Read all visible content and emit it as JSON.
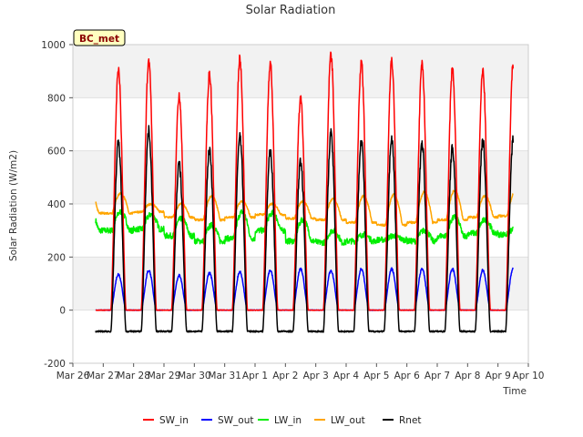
{
  "chart_data": {
    "type": "line",
    "title": "Solar Radiation",
    "xlabel": "Time",
    "ylabel": "Solar Radiation (W/m2)",
    "station_tag": "BC_met",
    "ylim": [
      -200,
      1000
    ],
    "yticks": [
      -200,
      0,
      200,
      400,
      600,
      800,
      1000
    ],
    "x_tick_labels": [
      "Mar 26",
      "Mar 27",
      "Mar 28",
      "Mar 29",
      "Mar 30",
      "Mar 31",
      "Apr 1",
      "Apr 2",
      "Apr 3",
      "Apr 4",
      "Apr 5",
      "Apr 6",
      "Apr 7",
      "Apr 8",
      "Apr 9",
      "Apr 10"
    ],
    "x_unit": "day",
    "xlim": [
      0,
      15
    ],
    "data_x_range": [
      0.75,
      14.5
    ],
    "grid": "horizontal bands",
    "legend_position": "bottom",
    "days": [
      "Mar 27",
      "Mar 28",
      "Mar 29",
      "Mar 30",
      "Mar 31",
      "Apr 1",
      "Apr 2",
      "Apr 3",
      "Apr 4",
      "Apr 5",
      "Apr 6",
      "Apr 7",
      "Apr 8",
      "Apr 9"
    ],
    "series": [
      {
        "name": "SW_in",
        "color": "#ff0000",
        "daily_peak": [
          900,
          940,
          810,
          890,
          945,
          930,
          800,
          965,
          935,
          940,
          925,
          905,
          900,
          925
        ],
        "night_value": 0
      },
      {
        "name": "SW_out",
        "color": "#0000ff",
        "daily_peak": [
          135,
          150,
          130,
          140,
          145,
          150,
          155,
          150,
          155,
          155,
          155,
          155,
          150,
          155
        ],
        "night_value": 0
      },
      {
        "name": "LW_in",
        "color": "#00ee00",
        "daily_base": [
          300,
          305,
          280,
          260,
          270,
          300,
          260,
          255,
          260,
          265,
          260,
          280,
          290,
          285
        ],
        "daily_peak": [
          370,
          360,
          345,
          320,
          370,
          365,
          340,
          300,
          285,
          280,
          300,
          350,
          340,
          305
        ]
      },
      {
        "name": "LW_out",
        "color": "#ffa500",
        "daily_base": [
          365,
          370,
          350,
          340,
          350,
          360,
          345,
          340,
          330,
          320,
          330,
          340,
          350,
          355
        ],
        "daily_peak": [
          440,
          400,
          400,
          430,
          410,
          400,
          410,
          420,
          430,
          435,
          445,
          450,
          430,
          445
        ]
      },
      {
        "name": "Rnet",
        "color": "#000000",
        "daily_peak": [
          630,
          675,
          550,
          605,
          660,
          600,
          560,
          665,
          640,
          645,
          625,
          610,
          640,
          640
        ],
        "night_value": -80
      }
    ]
  }
}
